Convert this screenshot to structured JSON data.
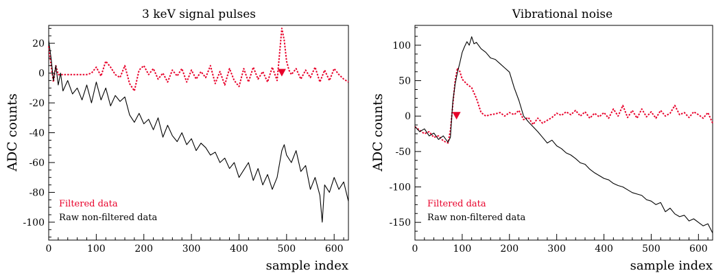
{
  "chart_data": [
    {
      "type": "line",
      "title": "3 keV signal pulses",
      "xlabel": "sample index",
      "ylabel": "ADC counts",
      "xlim": [
        0,
        630
      ],
      "ylim": [
        -112,
        32
      ],
      "xticks": [
        0,
        100,
        200,
        300,
        400,
        500,
        600
      ],
      "yticks": [
        -100,
        -80,
        -60,
        -40,
        -20,
        0,
        20
      ],
      "grid": false,
      "legend_placement": "bottom-left",
      "trigger_marker": {
        "x": 490,
        "y": 0,
        "color": "#e8002a"
      },
      "series": [
        {
          "name": "Filtered data",
          "color": "#e8002a",
          "style": "dotted",
          "x": [
            0,
            5,
            10,
            15,
            20,
            30,
            40,
            50,
            60,
            70,
            80,
            90,
            100,
            110,
            120,
            130,
            140,
            150,
            160,
            170,
            180,
            190,
            200,
            210,
            220,
            230,
            240,
            250,
            260,
            270,
            280,
            290,
            300,
            310,
            320,
            330,
            340,
            350,
            360,
            370,
            380,
            390,
            400,
            410,
            420,
            430,
            440,
            450,
            460,
            470,
            480,
            485,
            490,
            495,
            500,
            505,
            510,
            520,
            530,
            540,
            550,
            560,
            570,
            580,
            590,
            600,
            610,
            620,
            630
          ],
          "values": [
            18,
            5,
            -6,
            5,
            -1,
            -1,
            -1,
            -1,
            -1,
            -1,
            -1,
            0,
            4,
            -2,
            8,
            4,
            -1,
            -3,
            5,
            -7,
            -12,
            2,
            5,
            -1,
            3,
            -4,
            0,
            -6,
            2,
            -2,
            3,
            -6,
            2,
            -4,
            1,
            -3,
            5,
            -7,
            1,
            -8,
            3,
            -5,
            -9,
            3,
            -6,
            4,
            -4,
            1,
            -6,
            4,
            -5,
            12,
            30,
            22,
            8,
            2,
            -1,
            3,
            -4,
            2,
            -3,
            4,
            -6,
            2,
            -5,
            3,
            -1,
            -4,
            -6
          ]
        },
        {
          "name": "Raw non-filtered data",
          "color": "#000000",
          "style": "solid",
          "x": [
            0,
            5,
            10,
            15,
            20,
            25,
            30,
            40,
            50,
            60,
            70,
            80,
            90,
            100,
            110,
            120,
            130,
            140,
            150,
            160,
            170,
            180,
            190,
            200,
            210,
            220,
            230,
            240,
            250,
            260,
            270,
            280,
            290,
            300,
            310,
            320,
            330,
            340,
            350,
            360,
            370,
            380,
            390,
            400,
            410,
            420,
            430,
            440,
            450,
            460,
            470,
            480,
            490,
            495,
            500,
            510,
            520,
            530,
            540,
            550,
            560,
            570,
            575,
            580,
            590,
            600,
            610,
            620,
            630
          ],
          "values": [
            22,
            10,
            -5,
            5,
            -8,
            0,
            -12,
            -5,
            -14,
            -10,
            -18,
            -8,
            -20,
            -6,
            -18,
            -10,
            -22,
            -15,
            -19,
            -16,
            -28,
            -33,
            -27,
            -34,
            -31,
            -38,
            -30,
            -43,
            -35,
            -42,
            -46,
            -40,
            -48,
            -44,
            -52,
            -47,
            -50,
            -55,
            -53,
            -60,
            -57,
            -64,
            -60,
            -70,
            -65,
            -60,
            -72,
            -64,
            -75,
            -68,
            -78,
            -70,
            -52,
            -48,
            -55,
            -60,
            -52,
            -66,
            -62,
            -78,
            -70,
            -82,
            -100,
            -75,
            -80,
            -70,
            -78,
            -73,
            -86
          ]
        }
      ]
    },
    {
      "type": "line",
      "title": "Vibrational noise",
      "xlabel": "sample index",
      "ylabel": "ADC counts",
      "xlim": [
        0,
        630
      ],
      "ylim": [
        -175,
        128
      ],
      "xticks": [
        0,
        100,
        200,
        300,
        400,
        500,
        600
      ],
      "yticks": [
        -150,
        -100,
        -50,
        0,
        50,
        100
      ],
      "grid": false,
      "legend_placement": "bottom-left",
      "trigger_marker": {
        "x": 88,
        "y": 0,
        "color": "#e8002a"
      },
      "series": [
        {
          "name": "Filtered data",
          "color": "#e8002a",
          "style": "dotted",
          "x": [
            0,
            10,
            20,
            30,
            40,
            50,
            60,
            70,
            75,
            80,
            85,
            90,
            95,
            100,
            110,
            120,
            130,
            140,
            150,
            160,
            170,
            180,
            190,
            200,
            210,
            220,
            230,
            240,
            250,
            260,
            270,
            280,
            290,
            300,
            310,
            320,
            330,
            340,
            350,
            360,
            370,
            380,
            390,
            400,
            410,
            420,
            430,
            440,
            450,
            460,
            470,
            480,
            490,
            500,
            510,
            520,
            530,
            540,
            550,
            560,
            570,
            580,
            590,
            600,
            610,
            620,
            630
          ],
          "values": [
            -15,
            -20,
            -25,
            -22,
            -30,
            -28,
            -35,
            -38,
            -20,
            15,
            50,
            68,
            63,
            52,
            45,
            40,
            25,
            5,
            0,
            2,
            3,
            5,
            0,
            5,
            2,
            8,
            -5,
            -2,
            -12,
            -3,
            -10,
            -6,
            -2,
            4,
            1,
            6,
            2,
            8,
            0,
            6,
            -3,
            4,
            -1,
            5,
            -3,
            10,
            0,
            15,
            -2,
            8,
            -3,
            10,
            -1,
            6,
            -3,
            8,
            0,
            4,
            15,
            2,
            5,
            -2,
            6,
            2,
            -3,
            5,
            -10
          ]
        },
        {
          "name": "Raw non-filtered data",
          "color": "#000000",
          "style": "solid",
          "x": [
            0,
            10,
            20,
            30,
            40,
            50,
            60,
            70,
            75,
            80,
            85,
            90,
            95,
            100,
            105,
            110,
            115,
            120,
            125,
            130,
            140,
            150,
            160,
            170,
            180,
            190,
            200,
            210,
            220,
            230,
            240,
            250,
            260,
            270,
            280,
            290,
            300,
            310,
            320,
            330,
            340,
            350,
            360,
            370,
            380,
            390,
            400,
            410,
            420,
            430,
            440,
            450,
            460,
            470,
            480,
            490,
            500,
            510,
            520,
            530,
            540,
            550,
            560,
            570,
            580,
            590,
            600,
            610,
            620,
            630
          ],
          "values": [
            -15,
            -22,
            -18,
            -28,
            -24,
            -33,
            -28,
            -37,
            -30,
            20,
            45,
            62,
            75,
            90,
            98,
            105,
            100,
            112,
            102,
            104,
            95,
            90,
            82,
            80,
            74,
            68,
            62,
            40,
            22,
            0,
            -8,
            -15,
            -22,
            -30,
            -38,
            -34,
            -42,
            -46,
            -52,
            -55,
            -60,
            -66,
            -68,
            -75,
            -80,
            -84,
            -88,
            -90,
            -95,
            -98,
            -100,
            -104,
            -108,
            -110,
            -112,
            -118,
            -120,
            -125,
            -122,
            -135,
            -130,
            -138,
            -142,
            -140,
            -148,
            -145,
            -150,
            -155,
            -152,
            -165
          ]
        }
      ]
    }
  ]
}
